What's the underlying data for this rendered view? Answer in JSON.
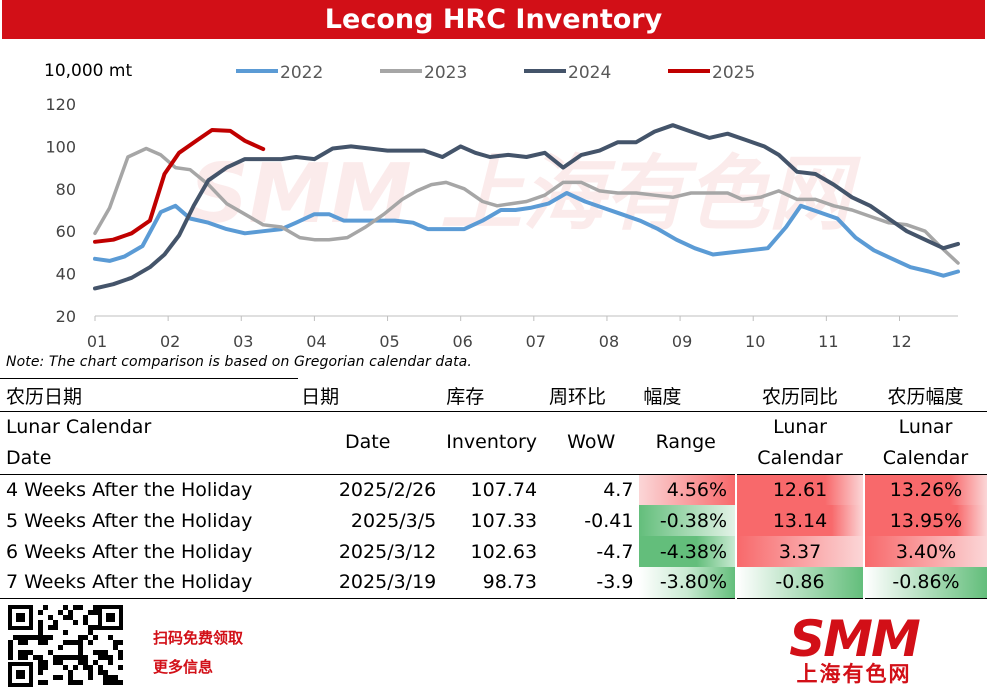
{
  "header": {
    "title": "Lecong HRC Inventory"
  },
  "chart_data": {
    "type": "line",
    "unit_label": "10,000  mt",
    "ylim": [
      20,
      120
    ],
    "yticks": [
      20,
      40,
      60,
      80,
      100,
      120
    ],
    "xlim": [
      1,
      12.8
    ],
    "xticks": [
      "01",
      "02",
      "03",
      "04",
      "05",
      "06",
      "07",
      "08",
      "09",
      "10",
      "11",
      "12"
    ],
    "grid": false,
    "legend": "top",
    "watermark": "SMM 上海有色网",
    "series": [
      {
        "name": "2022",
        "color": "#5b9bd5",
        "x": [
          1.0,
          1.2,
          1.4,
          1.65,
          1.9,
          2.1,
          2.3,
          2.55,
          2.8,
          3.05,
          3.3,
          3.55,
          3.75,
          4.0,
          4.2,
          4.4,
          4.6,
          4.85,
          5.1,
          5.35,
          5.55,
          5.8,
          6.05,
          6.3,
          6.55,
          6.75,
          6.95,
          7.2,
          7.45,
          7.7,
          7.95,
          8.2,
          8.45,
          8.7,
          8.95,
          9.2,
          9.45,
          9.7,
          9.95,
          10.2,
          10.45,
          10.65,
          10.9,
          11.15,
          11.4,
          11.65,
          11.9,
          12.15,
          12.4,
          12.6,
          12.8
        ],
        "y": [
          47,
          46,
          48,
          53,
          69,
          72,
          66,
          64,
          61,
          59,
          60,
          61,
          64,
          68,
          68,
          65,
          65,
          65,
          65,
          64,
          61,
          61,
          61,
          65,
          70,
          70,
          71,
          73,
          78,
          74,
          71,
          68,
          65,
          61,
          56,
          52,
          49,
          50,
          51,
          52,
          62,
          72,
          69,
          66,
          57,
          51,
          47,
          43,
          41,
          39,
          41
        ]
      },
      {
        "name": "2023",
        "color": "#a6a6a6",
        "x": [
          1.0,
          1.2,
          1.45,
          1.7,
          1.9,
          2.1,
          2.3,
          2.55,
          2.8,
          3.05,
          3.3,
          3.55,
          3.8,
          4.0,
          4.2,
          4.45,
          4.7,
          4.95,
          5.2,
          5.4,
          5.6,
          5.8,
          6.05,
          6.3,
          6.5,
          6.7,
          6.9,
          7.15,
          7.4,
          7.65,
          7.9,
          8.15,
          8.4,
          8.65,
          8.9,
          9.15,
          9.4,
          9.65,
          9.85,
          10.1,
          10.35,
          10.6,
          10.85,
          11.1,
          11.35,
          11.6,
          11.85,
          12.1,
          12.35,
          12.55,
          12.8
        ],
        "y": [
          59,
          71,
          95,
          99,
          96,
          90,
          89,
          82,
          73,
          68,
          63,
          62,
          57,
          56,
          56,
          57,
          62,
          68,
          75,
          79,
          82,
          83,
          80,
          74,
          72,
          73,
          74,
          77,
          83,
          83,
          79,
          78,
          78,
          77,
          76,
          78,
          78,
          78,
          75,
          76,
          79,
          75,
          75,
          72,
          70,
          67,
          64,
          63,
          60,
          53,
          45
        ]
      },
      {
        "name": "2024",
        "color": "#44546a",
        "x": [
          1.0,
          1.25,
          1.5,
          1.75,
          1.95,
          2.15,
          2.35,
          2.55,
          2.8,
          3.05,
          3.3,
          3.55,
          3.75,
          4.0,
          4.25,
          4.5,
          4.75,
          5.0,
          5.25,
          5.5,
          5.75,
          6.0,
          6.2,
          6.4,
          6.65,
          6.9,
          7.15,
          7.4,
          7.65,
          7.9,
          8.15,
          8.4,
          8.65,
          8.9,
          9.15,
          9.4,
          9.65,
          9.9,
          10.15,
          10.35,
          10.6,
          10.85,
          11.1,
          11.35,
          11.6,
          11.85,
          12.1,
          12.35,
          12.6,
          12.8
        ],
        "y": [
          33,
          35,
          38,
          43,
          49,
          58,
          72,
          84,
          90,
          94,
          94,
          94,
          95,
          94,
          99,
          100,
          99,
          98,
          98,
          98,
          95,
          100,
          97,
          95,
          96,
          95,
          97,
          90,
          96,
          98,
          102,
          102,
          107,
          110,
          107,
          104,
          106,
          103,
          100,
          96,
          88,
          87,
          82,
          76,
          72,
          66,
          60,
          56,
          52,
          54
        ]
      },
      {
        "name": "2025",
        "color": "#c00000",
        "x": [
          1.0,
          1.25,
          1.5,
          1.75,
          1.95,
          2.15,
          2.4,
          2.6,
          2.85,
          3.05,
          3.3
        ],
        "y": [
          55,
          56,
          59,
          65,
          87,
          97,
          103,
          107.74,
          107.33,
          102.63,
          98.73
        ]
      }
    ]
  },
  "note": "Note: The chart comparison is based on Gregorian calendar data.",
  "table": {
    "headers_cn": [
      "农历日期",
      "日期",
      "库存",
      "周环比",
      "幅度",
      "农历同比",
      "农历幅度"
    ],
    "headers_en": [
      "Lunar Calendar Date",
      "Date",
      "Inventory",
      "WoW",
      "Range",
      "Lunar Calendar",
      "Lunar Calendar"
    ],
    "rows": [
      {
        "label": "4 Weeks After the Holiday",
        "date": "2025/2/26",
        "inventory": "107.74",
        "wow": "4.7",
        "range": "4.56%",
        "lunar_yoy": "12.61",
        "lunar_range": "13.26%"
      },
      {
        "label": "5 Weeks After the Holiday",
        "date": "2025/3/5",
        "inventory": "107.33",
        "wow": "-0.41",
        "range": "-0.38%",
        "lunar_yoy": "13.14",
        "lunar_range": "13.95%"
      },
      {
        "label": "6 Weeks After the Holiday",
        "date": "2025/3/12",
        "inventory": "102.63",
        "wow": "-4.7",
        "range": "-4.38%",
        "lunar_yoy": "3.37",
        "lunar_range": "3.40%"
      },
      {
        "label": "7 Weeks After the Holiday",
        "date": "2025/3/19",
        "inventory": "98.73",
        "wow": "-3.9",
        "range": "-3.80%",
        "lunar_yoy": "-0.86",
        "lunar_range": "-0.86%"
      }
    ]
  },
  "colors": {
    "brand_red": "#d20f17",
    "positive": "#f8696b",
    "negative": "#63be7b"
  },
  "footer": {
    "cta_line1": "扫码免费领取",
    "cta_line2": "更多信息",
    "logo_text": "SMM",
    "logo_subtext": "上海有色网"
  }
}
